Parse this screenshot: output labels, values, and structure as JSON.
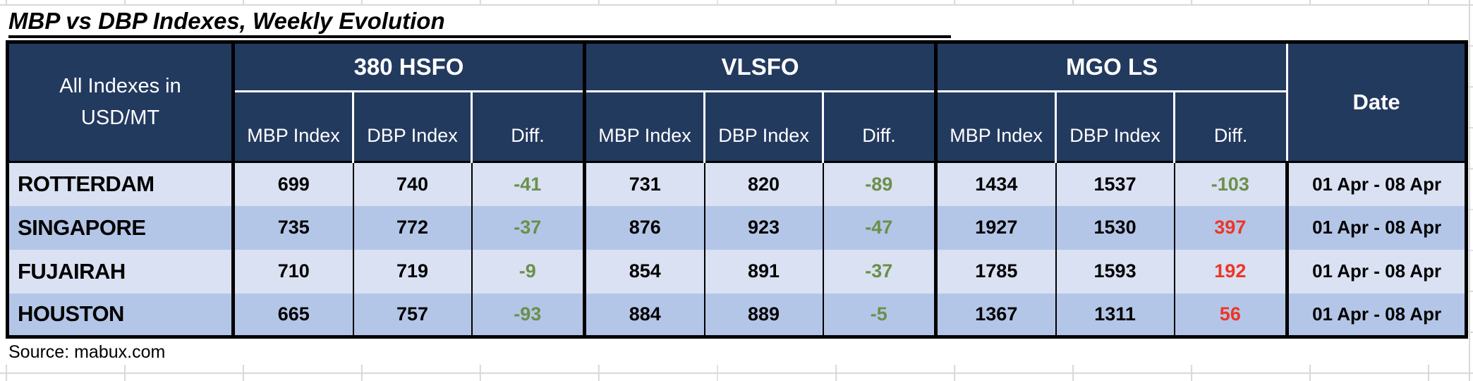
{
  "title": "MBP vs DBP Indexes, Weekly Evolution",
  "source_note": "Source: mabux.com",
  "colors": {
    "header_bg": "#233A5F",
    "row_light": "#D9E1F2",
    "row_dark": "#B4C6E7",
    "diff_negative_green": "#6C8F4A",
    "diff_positive_red": "#EE3524"
  },
  "table": {
    "corner_lines": [
      "All Indexes in",
      "USD/MT"
    ],
    "groups": [
      "380 HSFO",
      "VLSFO",
      "MGO LS"
    ],
    "sub_headers": [
      "MBP Index",
      "DBP Index",
      "Diff."
    ],
    "date_header": "Date",
    "rows": [
      {
        "port": "ROTTERDAM",
        "hsfo_mbp": "699",
        "hsfo_dbp": "740",
        "hsfo_diff": "-41",
        "vlsfo_mbp": "731",
        "vlsfo_dbp": "820",
        "vlsfo_diff": "-89",
        "mgo_mbp": "1434",
        "mgo_dbp": "1537",
        "mgo_diff": "-103",
        "date": "01 Apr - 08 Apr"
      },
      {
        "port": "SINGAPORE",
        "hsfo_mbp": "735",
        "hsfo_dbp": "772",
        "hsfo_diff": "-37",
        "vlsfo_mbp": "876",
        "vlsfo_dbp": "923",
        "vlsfo_diff": "-47",
        "mgo_mbp": "1927",
        "mgo_dbp": "1530",
        "mgo_diff": "397",
        "date": "01 Apr - 08 Apr"
      },
      {
        "port": "FUJAIRAH",
        "hsfo_mbp": "710",
        "hsfo_dbp": "719",
        "hsfo_diff": "-9",
        "vlsfo_mbp": "854",
        "vlsfo_dbp": "891",
        "vlsfo_diff": "-37",
        "mgo_mbp": "1785",
        "mgo_dbp": "1593",
        "mgo_diff": "192",
        "date": "01 Apr - 08 Apr"
      },
      {
        "port": "HOUSTON",
        "hsfo_mbp": "665",
        "hsfo_dbp": "757",
        "hsfo_diff": "-93",
        "vlsfo_mbp": "884",
        "vlsfo_dbp": "889",
        "vlsfo_diff": "-5",
        "mgo_mbp": "1367",
        "mgo_dbp": "1311",
        "mgo_diff": "56",
        "date": "01 Apr - 08 Apr"
      }
    ]
  }
}
